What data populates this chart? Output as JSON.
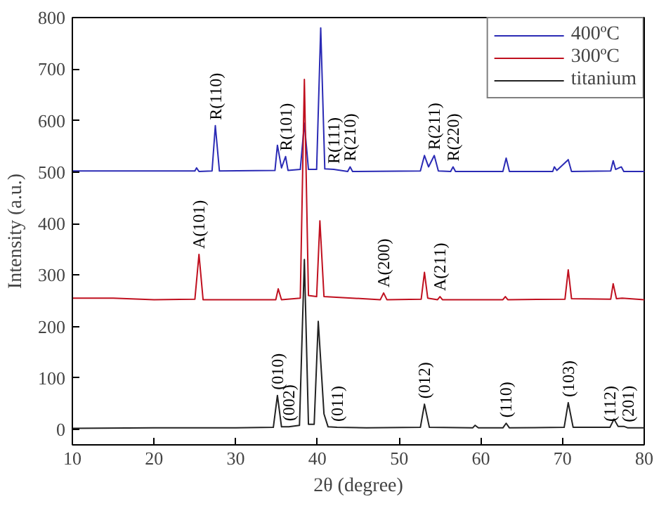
{
  "chart_data": {
    "type": "line",
    "xlabel": "2θ (degree)",
    "ylabel": "Intensity (a.u.)",
    "xlim": [
      10,
      80
    ],
    "xticks": [
      10,
      20,
      30,
      40,
      50,
      60,
      70,
      80
    ],
    "ylim": [
      -30,
      800
    ],
    "yticks": [
      0,
      100,
      200,
      300,
      400,
      500,
      600,
      700,
      800
    ],
    "grid": false,
    "legend": "top right",
    "line_style": "solid",
    "marker": "none",
    "series": [
      {
        "name": "400ºC",
        "color": "#2b2bb5",
        "x": [
          10,
          20,
          25,
          25.2,
          25.5,
          27.1,
          27.5,
          28.0,
          34.8,
          35.1,
          35.6,
          36.1,
          36.4,
          37.9,
          38.4,
          38.9,
          39.9,
          40.4,
          40.9,
          42.0,
          43.7,
          44.0,
          44.3,
          52.6,
          53.1,
          53.6,
          54.3,
          54.8,
          56.3,
          56.6,
          56.9,
          62.7,
          63.1,
          63.5,
          68.8,
          69.0,
          69.3,
          70.7,
          71.1,
          75.9,
          76.2,
          76.5,
          77.2,
          77.5,
          80
        ],
        "values": [
          502,
          502,
          502,
          508,
          501,
          502,
          590,
          502,
          503,
          552,
          508,
          530,
          503,
          505,
          595,
          505,
          505,
          780,
          506,
          505,
          501,
          510,
          501,
          502,
          532,
          510,
          532,
          502,
          501,
          510,
          501,
          501,
          527,
          501,
          501,
          510,
          503,
          524,
          501,
          502,
          522,
          505,
          510,
          501,
          501
        ]
      },
      {
        "name": "300ºC",
        "color": "#c0101f",
        "x": [
          10,
          15,
          20,
          25,
          25.5,
          26,
          34.9,
          35.2,
          35.6,
          37.9,
          38.4,
          38.9,
          39.9,
          40.3,
          40.8,
          47.7,
          48.1,
          48.5,
          52.7,
          53.1,
          53.5,
          54.7,
          55.0,
          55.3,
          62.7,
          63.0,
          63.3,
          70.3,
          70.7,
          71.1,
          75.9,
          76.2,
          76.6,
          77.3,
          80
        ],
        "values": [
          255,
          255,
          252,
          253,
          340,
          252,
          252,
          273,
          252,
          255,
          680,
          260,
          258,
          405,
          258,
          252,
          265,
          252,
          253,
          305,
          255,
          252,
          258,
          252,
          252,
          258,
          252,
          253,
          310,
          254,
          253,
          283,
          254,
          255,
          252
        ]
      },
      {
        "name": "titanium",
        "color": "#222222",
        "x": [
          10,
          20,
          30,
          34.6,
          35.1,
          35.6,
          36.5,
          37.8,
          38.4,
          38.9,
          39.6,
          40.1,
          40.8,
          41.3,
          42.4,
          46,
          52.6,
          53.1,
          53.7,
          59.0,
          59.3,
          59.7,
          62.7,
          63.1,
          63.5,
          70.2,
          70.7,
          71.3,
          75.8,
          76.3,
          76.8,
          77.5,
          78,
          80
        ],
        "values": [
          2,
          3,
          3,
          4,
          66,
          5,
          5,
          8,
          330,
          10,
          10,
          210,
          30,
          5,
          4,
          3,
          4,
          49,
          4,
          3,
          8,
          3,
          3,
          12,
          3,
          4,
          52,
          4,
          4,
          20,
          6,
          6,
          3,
          3
        ]
      }
    ],
    "annotations": [
      {
        "text": "R(110)",
        "x": 27.5,
        "y": 590
      },
      {
        "text": "R(101)",
        "x": 36.1,
        "y": 530
      },
      {
        "text": "R(111)",
        "x": 42.0,
        "y": 505
      },
      {
        "text": "R(210)",
        "x": 44.0,
        "y": 510
      },
      {
        "text": "R(211)",
        "x": 54.3,
        "y": 532
      },
      {
        "text": "R(220)",
        "x": 56.6,
        "y": 510
      },
      {
        "text": "A(101)",
        "x": 25.5,
        "y": 340
      },
      {
        "text": "A(200)",
        "x": 48.1,
        "y": 265
      },
      {
        "text": "A(211)",
        "x": 55.0,
        "y": 258
      },
      {
        "text": "(010)",
        "x": 35.1,
        "y": 66
      },
      {
        "text": "(002)",
        "x": 36.5,
        "y": 5
      },
      {
        "text": "(011)",
        "x": 42.4,
        "y": 4
      },
      {
        "text": "(012)",
        "x": 53.1,
        "y": 49
      },
      {
        "text": "(110)",
        "x": 63.1,
        "y": 12
      },
      {
        "text": "(103)",
        "x": 70.7,
        "y": 52
      },
      {
        "text": "(112)",
        "x": 75.8,
        "y": 4
      },
      {
        "text": "(201)",
        "x": 78,
        "y": 3
      }
    ]
  }
}
